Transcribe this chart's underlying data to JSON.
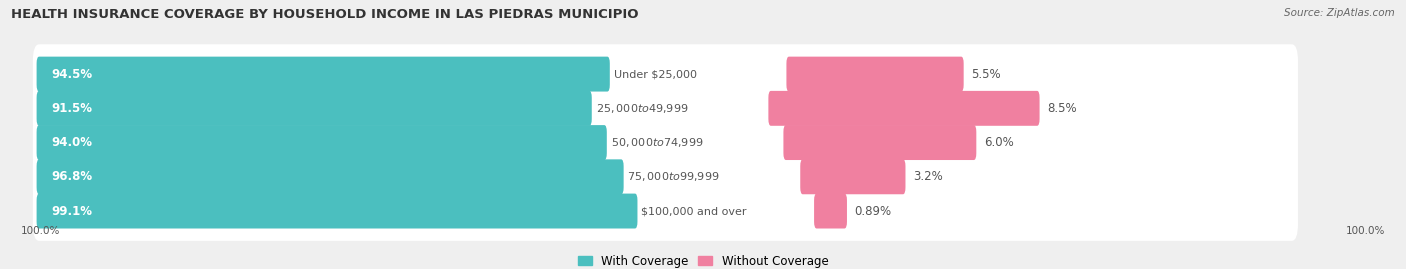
{
  "title": "HEALTH INSURANCE COVERAGE BY HOUSEHOLD INCOME IN LAS PIEDRAS MUNICIPIO",
  "source": "Source: ZipAtlas.com",
  "categories": [
    "Under $25,000",
    "$25,000 to $49,999",
    "$50,000 to $74,999",
    "$75,000 to $99,999",
    "$100,000 and over"
  ],
  "with_coverage": [
    94.5,
    91.5,
    94.0,
    96.8,
    99.1
  ],
  "without_coverage": [
    5.5,
    8.5,
    6.0,
    3.2,
    0.89
  ],
  "with_coverage_labels": [
    "94.5%",
    "91.5%",
    "94.0%",
    "96.8%",
    "99.1%"
  ],
  "without_coverage_labels": [
    "5.5%",
    "8.5%",
    "6.0%",
    "3.2%",
    "0.89%"
  ],
  "bottom_left_label": "100.0%",
  "bottom_right_label": "100.0%",
  "color_with": "#4bbfbf",
  "color_without": "#f080a0",
  "background_color": "#efefef",
  "bar_background": "#ffffff",
  "legend_with": "With Coverage",
  "legend_without": "Without Coverage",
  "title_fontsize": 9.5,
  "label_fontsize": 8.5,
  "cat_fontsize": 8.0,
  "bar_height": 0.62,
  "scale_factor": 0.48,
  "without_scale": 2.5,
  "total_bar_width": 100.0,
  "xlim_left": -2,
  "xlim_right": 108
}
